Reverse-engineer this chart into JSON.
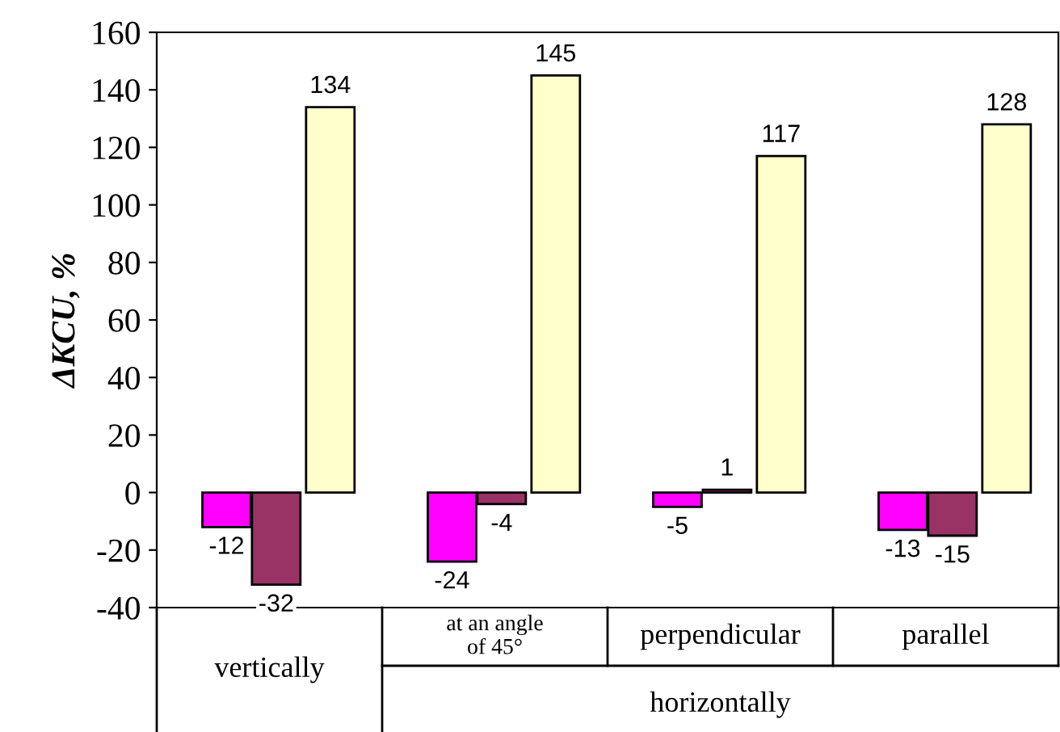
{
  "chart_data": {
    "type": "bar",
    "ylabel": "ΔKCU, %",
    "categories": [
      "vertically",
      "at an angle\nof 45°",
      "perpendicular",
      "parallel"
    ],
    "series": [
      {
        "color": "#ff00ff",
        "values": [
          -12,
          -24,
          -5,
          -13
        ]
      },
      {
        "color": "#993366",
        "values": [
          -32,
          -4,
          1,
          -15
        ]
      },
      {
        "color": "#ffffcc",
        "values": [
          134,
          145,
          117,
          128
        ]
      }
    ],
    "ylim": [
      -40,
      160
    ],
    "yticks": [
      -40,
      -20,
      0,
      20,
      40,
      60,
      80,
      100,
      120,
      140,
      160
    ],
    "data_labels": true,
    "grid": false,
    "legend": false,
    "annotations": [
      "horizontally"
    ]
  }
}
